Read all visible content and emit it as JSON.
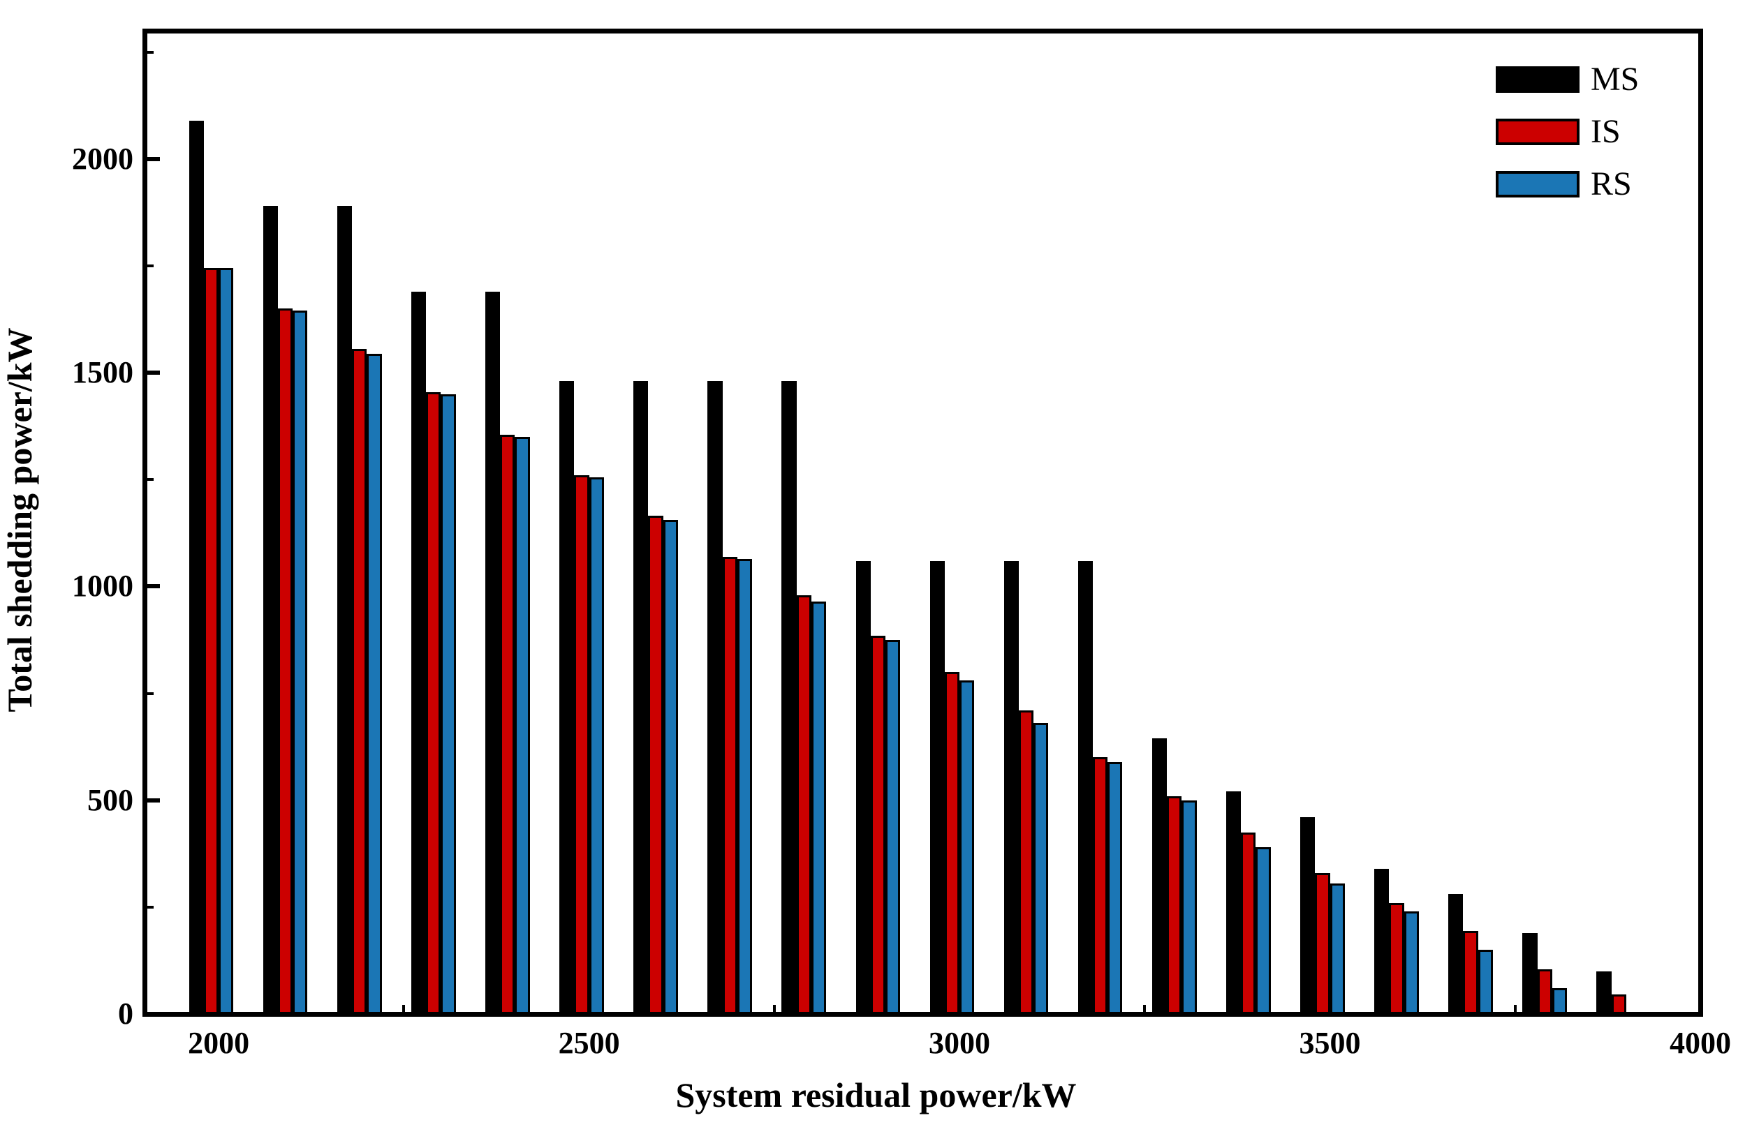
{
  "figure": {
    "background": "#ffffff"
  },
  "axes": {
    "x": {
      "title": "System residual power/kW",
      "min": 1900,
      "max": 4000,
      "major_ticks": [
        2000,
        2500,
        3000,
        3500,
        4000
      ],
      "major_tick_labels": [
        "2000",
        "2500",
        "3000",
        "3500",
        "4000"
      ],
      "minor_ticks": [
        2250,
        2750,
        3250,
        3750
      ]
    },
    "y": {
      "title": "Total shedding power/kW",
      "min": 0,
      "max": 2300,
      "major_ticks": [
        0,
        500,
        1000,
        1500,
        2000
      ],
      "major_tick_labels": [
        "0",
        "500",
        "1000",
        "1500",
        "2000"
      ],
      "minor_ticks": [
        250,
        750,
        1250,
        1750,
        2250
      ]
    }
  },
  "legend": {
    "items": [
      {
        "label": "MS",
        "color": "#000000"
      },
      {
        "label": "IS",
        "color": "#cc0000"
      },
      {
        "label": "RS",
        "color": "#1b76b5"
      }
    ]
  },
  "chart_data": {
    "type": "bar",
    "title": "",
    "xlabel": "System residual power/kW",
    "ylabel": "Total shedding power/kW",
    "xlim": [
      1900,
      4000
    ],
    "ylim": [
      0,
      2300
    ],
    "grid": false,
    "legend_position": "top-right",
    "bar_width_x_units": 20,
    "bar_offsets_x_units": [
      -40,
      -20,
      0
    ],
    "x": [
      2000,
      2100,
      2200,
      2300,
      2400,
      2500,
      2600,
      2700,
      2800,
      2900,
      3000,
      3100,
      3200,
      3300,
      3400,
      3500,
      3600,
      3700,
      3800,
      3900
    ],
    "series": [
      {
        "name": "MS",
        "color": "#000000",
        "values": [
          2090,
          1890,
          1890,
          1690,
          1690,
          1480,
          1480,
          1480,
          1480,
          1060,
          1060,
          1060,
          1060,
          645,
          520,
          460,
          340,
          280,
          190,
          100
        ]
      },
      {
        "name": "IS",
        "color": "#cc0000",
        "values": [
          1745,
          1650,
          1555,
          1455,
          1355,
          1260,
          1165,
          1070,
          980,
          885,
          800,
          710,
          600,
          510,
          425,
          330,
          260,
          195,
          105,
          45
        ]
      },
      {
        "name": "RS",
        "color": "#1b76b5",
        "values": [
          1745,
          1645,
          1545,
          1450,
          1350,
          1255,
          1155,
          1065,
          965,
          875,
          780,
          680,
          590,
          500,
          390,
          305,
          240,
          150,
          60,
          0
        ]
      }
    ]
  }
}
